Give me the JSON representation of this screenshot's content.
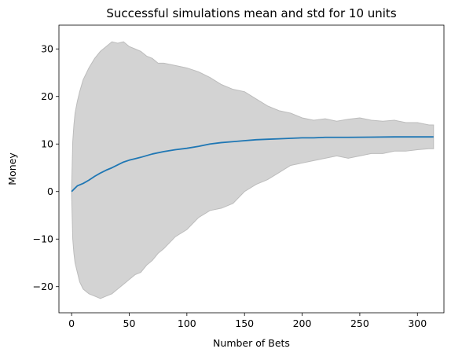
{
  "chart_data": {
    "type": "line",
    "title": "Successful simulations mean and std for 10 units",
    "xlabel": "Number of Bets",
    "ylabel": "Money",
    "xlim": [
      -11,
      323
    ],
    "ylim": [
      -25.5,
      35
    ],
    "xticks": [
      0,
      50,
      100,
      150,
      200,
      250,
      300
    ],
    "yticks": [
      -20,
      -10,
      0,
      10,
      20,
      30
    ],
    "grid": false,
    "colors": {
      "mean_line": "#1f77b4",
      "std_band": "#d3d3d3",
      "std_band_edge": "#bcbcbc"
    },
    "series": [
      {
        "kind": "line",
        "x": [
          0,
          2,
          5,
          10,
          15,
          20,
          25,
          30,
          35,
          40,
          45,
          50,
          55,
          60,
          70,
          80,
          90,
          100,
          110,
          120,
          130,
          140,
          150,
          160,
          170,
          180,
          190,
          200,
          210,
          220,
          240,
          260,
          280,
          300,
          314
        ],
        "y": [
          0.0,
          0.5,
          1.2,
          1.7,
          2.4,
          3.2,
          3.9,
          4.5,
          5.0,
          5.6,
          6.2,
          6.6,
          6.9,
          7.2,
          7.9,
          8.4,
          8.8,
          9.1,
          9.5,
          10.0,
          10.3,
          10.5,
          10.7,
          10.9,
          11.0,
          11.1,
          11.2,
          11.3,
          11.3,
          11.4,
          11.4,
          11.45,
          11.5,
          11.5,
          11.5
        ]
      },
      {
        "kind": "band",
        "x": [
          0,
          1,
          2,
          3,
          5,
          7,
          10,
          15,
          20,
          25,
          30,
          35,
          40,
          45,
          50,
          55,
          60,
          65,
          70,
          75,
          80,
          90,
          100,
          110,
          120,
          130,
          140,
          150,
          160,
          170,
          180,
          190,
          200,
          210,
          220,
          230,
          240,
          250,
          260,
          270,
          280,
          290,
          300,
          310,
          314
        ],
        "upper": [
          0.5,
          10.5,
          14.0,
          16.5,
          19.0,
          21.0,
          23.5,
          26.0,
          28.0,
          29.5,
          30.5,
          31.5,
          31.2,
          31.5,
          30.5,
          30.0,
          29.5,
          28.5,
          28.0,
          27.0,
          27.0,
          26.5,
          26.0,
          25.2,
          24.0,
          22.5,
          21.5,
          21.0,
          19.5,
          18.0,
          17.0,
          16.5,
          15.5,
          15.0,
          15.3,
          14.8,
          15.2,
          15.5,
          15.0,
          14.8,
          15.0,
          14.5,
          14.5,
          14.0,
          14.0
        ],
        "lower": [
          -0.5,
          -10.0,
          -13.0,
          -15.0,
          -17.0,
          -19.0,
          -20.5,
          -21.5,
          -22.0,
          -22.5,
          -22.0,
          -21.5,
          -20.5,
          -19.5,
          -18.5,
          -17.5,
          -17.0,
          -15.5,
          -14.5,
          -13.0,
          -12.0,
          -9.5,
          -8.0,
          -5.5,
          -4.0,
          -3.5,
          -2.5,
          0.0,
          1.5,
          2.5,
          4.0,
          5.5,
          6.0,
          6.5,
          7.0,
          7.5,
          7.0,
          7.5,
          8.0,
          8.0,
          8.5,
          8.5,
          8.8,
          9.0,
          9.0
        ]
      }
    ]
  }
}
